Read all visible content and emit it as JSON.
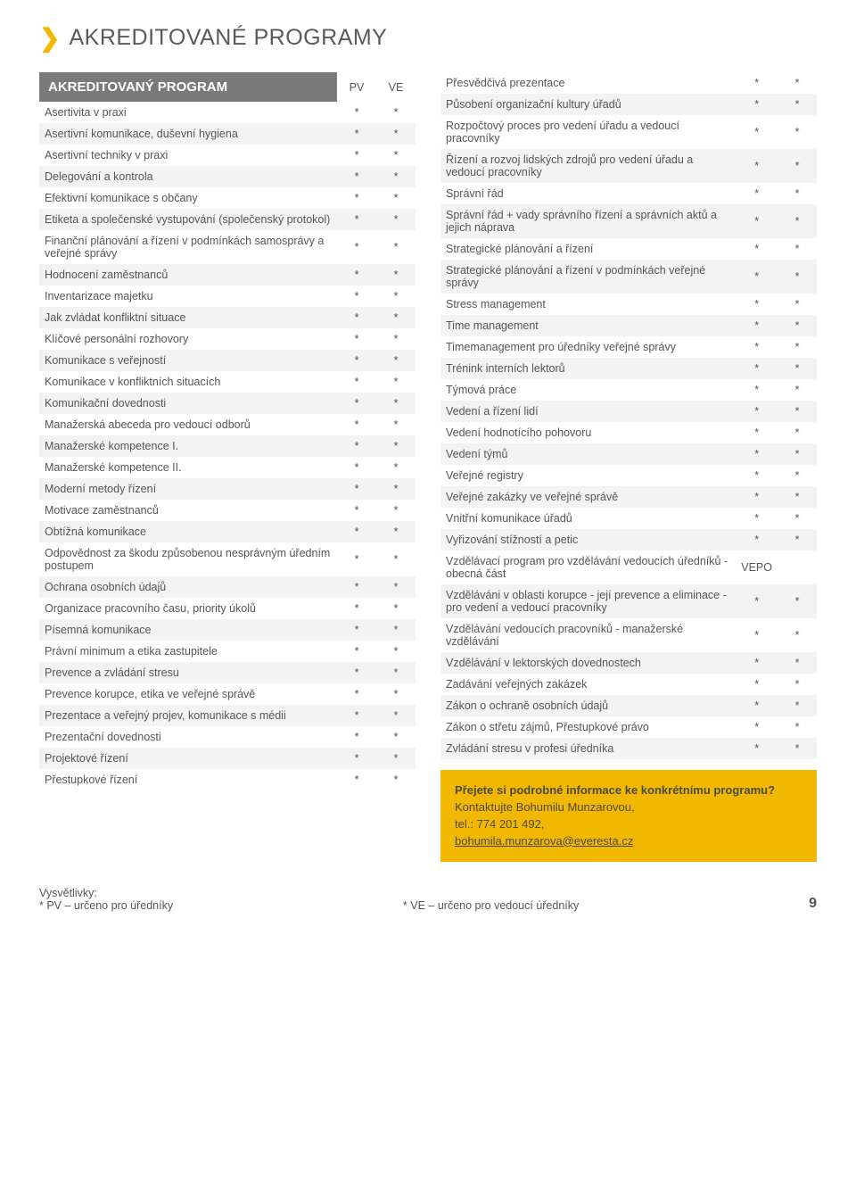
{
  "colors": {
    "accent": "#f2b800",
    "header_bg": "#7a7a7a",
    "row_even": "#f3f3f3",
    "text": "#4a4a4a"
  },
  "title": "AKREDITOVANÉ PROGRAMY",
  "table_header": {
    "title": "AKREDITOVANÝ PROGRAM",
    "pv": "PV",
    "ve": "VE"
  },
  "left_rows": [
    {
      "label": "Asertivita v praxi",
      "pv": "*",
      "ve": "*"
    },
    {
      "label": "Asertivní komunikace, duševní hygiena",
      "pv": "*",
      "ve": "*"
    },
    {
      "label": "Asertivní techniky v praxi",
      "pv": "*",
      "ve": "*"
    },
    {
      "label": "Delegování a kontrola",
      "pv": "*",
      "ve": "*"
    },
    {
      "label": "Efektivní komunikace s občany",
      "pv": "*",
      "ve": "*"
    },
    {
      "label": "Etiketa a společenské vystupování (společenský protokol)",
      "pv": "*",
      "ve": "*"
    },
    {
      "label": "Finanční plánování a řízení v podmínkách samosprávy a veřejné správy",
      "pv": "*",
      "ve": "*"
    },
    {
      "label": "Hodnocení zaměstnanců",
      "pv": "*",
      "ve": "*"
    },
    {
      "label": "Inventarizace majetku",
      "pv": "*",
      "ve": "*"
    },
    {
      "label": "Jak zvládat konfliktní situace",
      "pv": "*",
      "ve": "*"
    },
    {
      "label": "Klíčové personální rozhovory",
      "pv": "*",
      "ve": "*"
    },
    {
      "label": "Komunikace s veřejností",
      "pv": "*",
      "ve": "*"
    },
    {
      "label": "Komunikace v konfliktních situacích",
      "pv": "*",
      "ve": "*"
    },
    {
      "label": "Komunikační dovednosti",
      "pv": "*",
      "ve": "*"
    },
    {
      "label": "Manažerská abeceda pro vedoucí odborů",
      "pv": "*",
      "ve": "*"
    },
    {
      "label": "Manažerské kompetence I.",
      "pv": "*",
      "ve": "*"
    },
    {
      "label": "Manažerské kompetence II.",
      "pv": "*",
      "ve": "*"
    },
    {
      "label": "Moderní metody řízení",
      "pv": "*",
      "ve": "*"
    },
    {
      "label": "Motivace zaměstnanců",
      "pv": "*",
      "ve": "*"
    },
    {
      "label": "Obtížná komunikace",
      "pv": "*",
      "ve": "*"
    },
    {
      "label": "Odpovědnost za škodu způsobenou nesprávným úředním postupem",
      "pv": "*",
      "ve": "*"
    },
    {
      "label": "Ochrana osobních údajů",
      "pv": "*",
      "ve": "*"
    },
    {
      "label": "Organizace pracovního času, priority úkolů",
      "pv": "*",
      "ve": "*"
    },
    {
      "label": "Písemná komunikace",
      "pv": "*",
      "ve": "*"
    },
    {
      "label": "Právní minimum a etika zastupitele",
      "pv": "*",
      "ve": "*"
    },
    {
      "label": "Prevence a zvládání stresu",
      "pv": "*",
      "ve": "*"
    },
    {
      "label": "Prevence korupce, etika ve veřejné správě",
      "pv": "*",
      "ve": "*"
    },
    {
      "label": "Prezentace a veřejný projev, komunikace s médii",
      "pv": "*",
      "ve": "*"
    },
    {
      "label": "Prezentační dovednosti",
      "pv": "*",
      "ve": "*"
    },
    {
      "label": "Projektové řízení",
      "pv": "*",
      "ve": "*"
    },
    {
      "label": "Přestupkové řízení",
      "pv": "*",
      "ve": "*"
    }
  ],
  "right_rows": [
    {
      "label": "Přesvědčivá prezentace",
      "pv": "*",
      "ve": "*"
    },
    {
      "label": "Působení organizační kultury úřadů",
      "pv": "*",
      "ve": "*"
    },
    {
      "label": "Rozpočtový proces pro vedení úřadu a vedoucí pracovníky",
      "pv": "*",
      "ve": "*"
    },
    {
      "label": "Řízení a rozvoj lidských zdrojů pro vedení úřadu a vedoucí pracovníky",
      "pv": "*",
      "ve": "*"
    },
    {
      "label": "Správní řád",
      "pv": "*",
      "ve": "*"
    },
    {
      "label": "Správní řád + vady správního řízení a správních aktů a jejich náprava",
      "pv": "*",
      "ve": "*"
    },
    {
      "label": "Strategické plánování a řízení",
      "pv": "*",
      "ve": "*"
    },
    {
      "label": "Strategické plánování a řízení v podmínkách veřejné správy",
      "pv": "*",
      "ve": "*"
    },
    {
      "label": "Stress management",
      "pv": "*",
      "ve": "*"
    },
    {
      "label": "Time management",
      "pv": "*",
      "ve": "*"
    },
    {
      "label": "Timemanagement pro úředníky veřejné správy",
      "pv": "*",
      "ve": "*"
    },
    {
      "label": "Trénink interních lektorů",
      "pv": "*",
      "ve": "*"
    },
    {
      "label": "Týmová práce",
      "pv": "*",
      "ve": "*"
    },
    {
      "label": "Vedení a řízení lidí",
      "pv": "*",
      "ve": "*"
    },
    {
      "label": "Vedení hodnotícího pohovoru",
      "pv": "*",
      "ve": "*"
    },
    {
      "label": "Vedení týmů",
      "pv": "*",
      "ve": "*"
    },
    {
      "label": "Veřejné registry",
      "pv": "*",
      "ve": "*"
    },
    {
      "label": "Veřejné zakázky ve veřejné správě",
      "pv": "*",
      "ve": "*"
    },
    {
      "label": "Vnitřní komunikace úřadů",
      "pv": "*",
      "ve": "*"
    },
    {
      "label": "Vyřizování stížností a petic",
      "pv": "*",
      "ve": "*"
    },
    {
      "label": "Vzdělávací program pro vzdělávání vedoucích úředníků - obecná část",
      "pv": "VEPO",
      "ve": ""
    },
    {
      "label": "Vzděláváni v oblasti korupce - její prevence a eliminace - pro vedení a vedoucí pracovníky",
      "pv": "*",
      "ve": "*"
    },
    {
      "label": "Vzdělávání vedoucích pracovníků - manažerské vzdělávání",
      "pv": "*",
      "ve": "*"
    },
    {
      "label": "Vzdělávání v lektorských dovednostech",
      "pv": "*",
      "ve": "*"
    },
    {
      "label": "Zadávání veřejných zakázek",
      "pv": "*",
      "ve": "*"
    },
    {
      "label": "Zákon o ochraně osobních údajů",
      "pv": "*",
      "ve": "*"
    },
    {
      "label": "Zákon o střetu zájmů, Přestupkové právo",
      "pv": "*",
      "ve": "*"
    },
    {
      "label": "Zvládání stresu v profesi úředníka",
      "pv": "*",
      "ve": "*"
    }
  ],
  "callout": {
    "line1": "Přejete si podrobné informace ke konkrétnímu programu?",
    "line2": "Kontaktujte Bohumilu Munzarovou,",
    "line3": "tel.: 774 201 492,",
    "email": "bohumila.munzarova@everesta.cz"
  },
  "legend": {
    "title": "Vysvětlivky:",
    "pv": "* PV – určeno pro úředníky",
    "ve": "* VE – určeno pro vedoucí úředníky"
  },
  "page_number": "9"
}
